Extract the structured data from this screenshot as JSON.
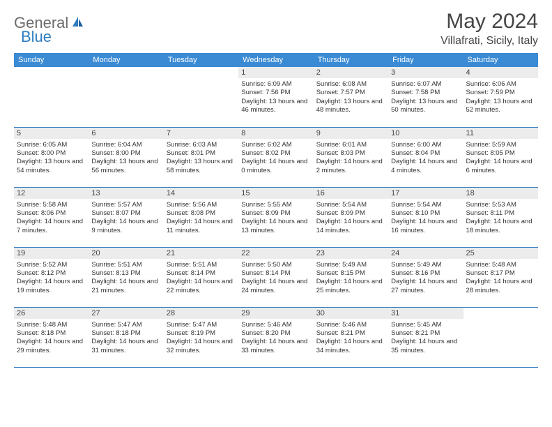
{
  "logo": {
    "general": "General",
    "blue": "Blue"
  },
  "title": "May 2024",
  "location": "Villafrati, Sicily, Italy",
  "colors": {
    "header_bg": "#3b8bd4",
    "border": "#2e7cc2",
    "daynum_bg": "#ececec",
    "logo_gray": "#6b6b6b",
    "logo_blue": "#2e7cc2"
  },
  "weekdays": [
    "Sunday",
    "Monday",
    "Tuesday",
    "Wednesday",
    "Thursday",
    "Friday",
    "Saturday"
  ],
  "first_weekday_index": 3,
  "days": [
    {
      "n": 1,
      "sr": "6:09 AM",
      "ss": "7:56 PM",
      "dl": "13 hours and 46 minutes."
    },
    {
      "n": 2,
      "sr": "6:08 AM",
      "ss": "7:57 PM",
      "dl": "13 hours and 48 minutes."
    },
    {
      "n": 3,
      "sr": "6:07 AM",
      "ss": "7:58 PM",
      "dl": "13 hours and 50 minutes."
    },
    {
      "n": 4,
      "sr": "6:06 AM",
      "ss": "7:59 PM",
      "dl": "13 hours and 52 minutes."
    },
    {
      "n": 5,
      "sr": "6:05 AM",
      "ss": "8:00 PM",
      "dl": "13 hours and 54 minutes."
    },
    {
      "n": 6,
      "sr": "6:04 AM",
      "ss": "8:00 PM",
      "dl": "13 hours and 56 minutes."
    },
    {
      "n": 7,
      "sr": "6:03 AM",
      "ss": "8:01 PM",
      "dl": "13 hours and 58 minutes."
    },
    {
      "n": 8,
      "sr": "6:02 AM",
      "ss": "8:02 PM",
      "dl": "14 hours and 0 minutes."
    },
    {
      "n": 9,
      "sr": "6:01 AM",
      "ss": "8:03 PM",
      "dl": "14 hours and 2 minutes."
    },
    {
      "n": 10,
      "sr": "6:00 AM",
      "ss": "8:04 PM",
      "dl": "14 hours and 4 minutes."
    },
    {
      "n": 11,
      "sr": "5:59 AM",
      "ss": "8:05 PM",
      "dl": "14 hours and 6 minutes."
    },
    {
      "n": 12,
      "sr": "5:58 AM",
      "ss": "8:06 PM",
      "dl": "14 hours and 7 minutes."
    },
    {
      "n": 13,
      "sr": "5:57 AM",
      "ss": "8:07 PM",
      "dl": "14 hours and 9 minutes."
    },
    {
      "n": 14,
      "sr": "5:56 AM",
      "ss": "8:08 PM",
      "dl": "14 hours and 11 minutes."
    },
    {
      "n": 15,
      "sr": "5:55 AM",
      "ss": "8:09 PM",
      "dl": "14 hours and 13 minutes."
    },
    {
      "n": 16,
      "sr": "5:54 AM",
      "ss": "8:09 PM",
      "dl": "14 hours and 14 minutes."
    },
    {
      "n": 17,
      "sr": "5:54 AM",
      "ss": "8:10 PM",
      "dl": "14 hours and 16 minutes."
    },
    {
      "n": 18,
      "sr": "5:53 AM",
      "ss": "8:11 PM",
      "dl": "14 hours and 18 minutes."
    },
    {
      "n": 19,
      "sr": "5:52 AM",
      "ss": "8:12 PM",
      "dl": "14 hours and 19 minutes."
    },
    {
      "n": 20,
      "sr": "5:51 AM",
      "ss": "8:13 PM",
      "dl": "14 hours and 21 minutes."
    },
    {
      "n": 21,
      "sr": "5:51 AM",
      "ss": "8:14 PM",
      "dl": "14 hours and 22 minutes."
    },
    {
      "n": 22,
      "sr": "5:50 AM",
      "ss": "8:14 PM",
      "dl": "14 hours and 24 minutes."
    },
    {
      "n": 23,
      "sr": "5:49 AM",
      "ss": "8:15 PM",
      "dl": "14 hours and 25 minutes."
    },
    {
      "n": 24,
      "sr": "5:49 AM",
      "ss": "8:16 PM",
      "dl": "14 hours and 27 minutes."
    },
    {
      "n": 25,
      "sr": "5:48 AM",
      "ss": "8:17 PM",
      "dl": "14 hours and 28 minutes."
    },
    {
      "n": 26,
      "sr": "5:48 AM",
      "ss": "8:18 PM",
      "dl": "14 hours and 29 minutes."
    },
    {
      "n": 27,
      "sr": "5:47 AM",
      "ss": "8:18 PM",
      "dl": "14 hours and 31 minutes."
    },
    {
      "n": 28,
      "sr": "5:47 AM",
      "ss": "8:19 PM",
      "dl": "14 hours and 32 minutes."
    },
    {
      "n": 29,
      "sr": "5:46 AM",
      "ss": "8:20 PM",
      "dl": "14 hours and 33 minutes."
    },
    {
      "n": 30,
      "sr": "5:46 AM",
      "ss": "8:21 PM",
      "dl": "14 hours and 34 minutes."
    },
    {
      "n": 31,
      "sr": "5:45 AM",
      "ss": "8:21 PM",
      "dl": "14 hours and 35 minutes."
    }
  ],
  "labels": {
    "sunrise": "Sunrise: ",
    "sunset": "Sunset: ",
    "daylight": "Daylight: "
  }
}
